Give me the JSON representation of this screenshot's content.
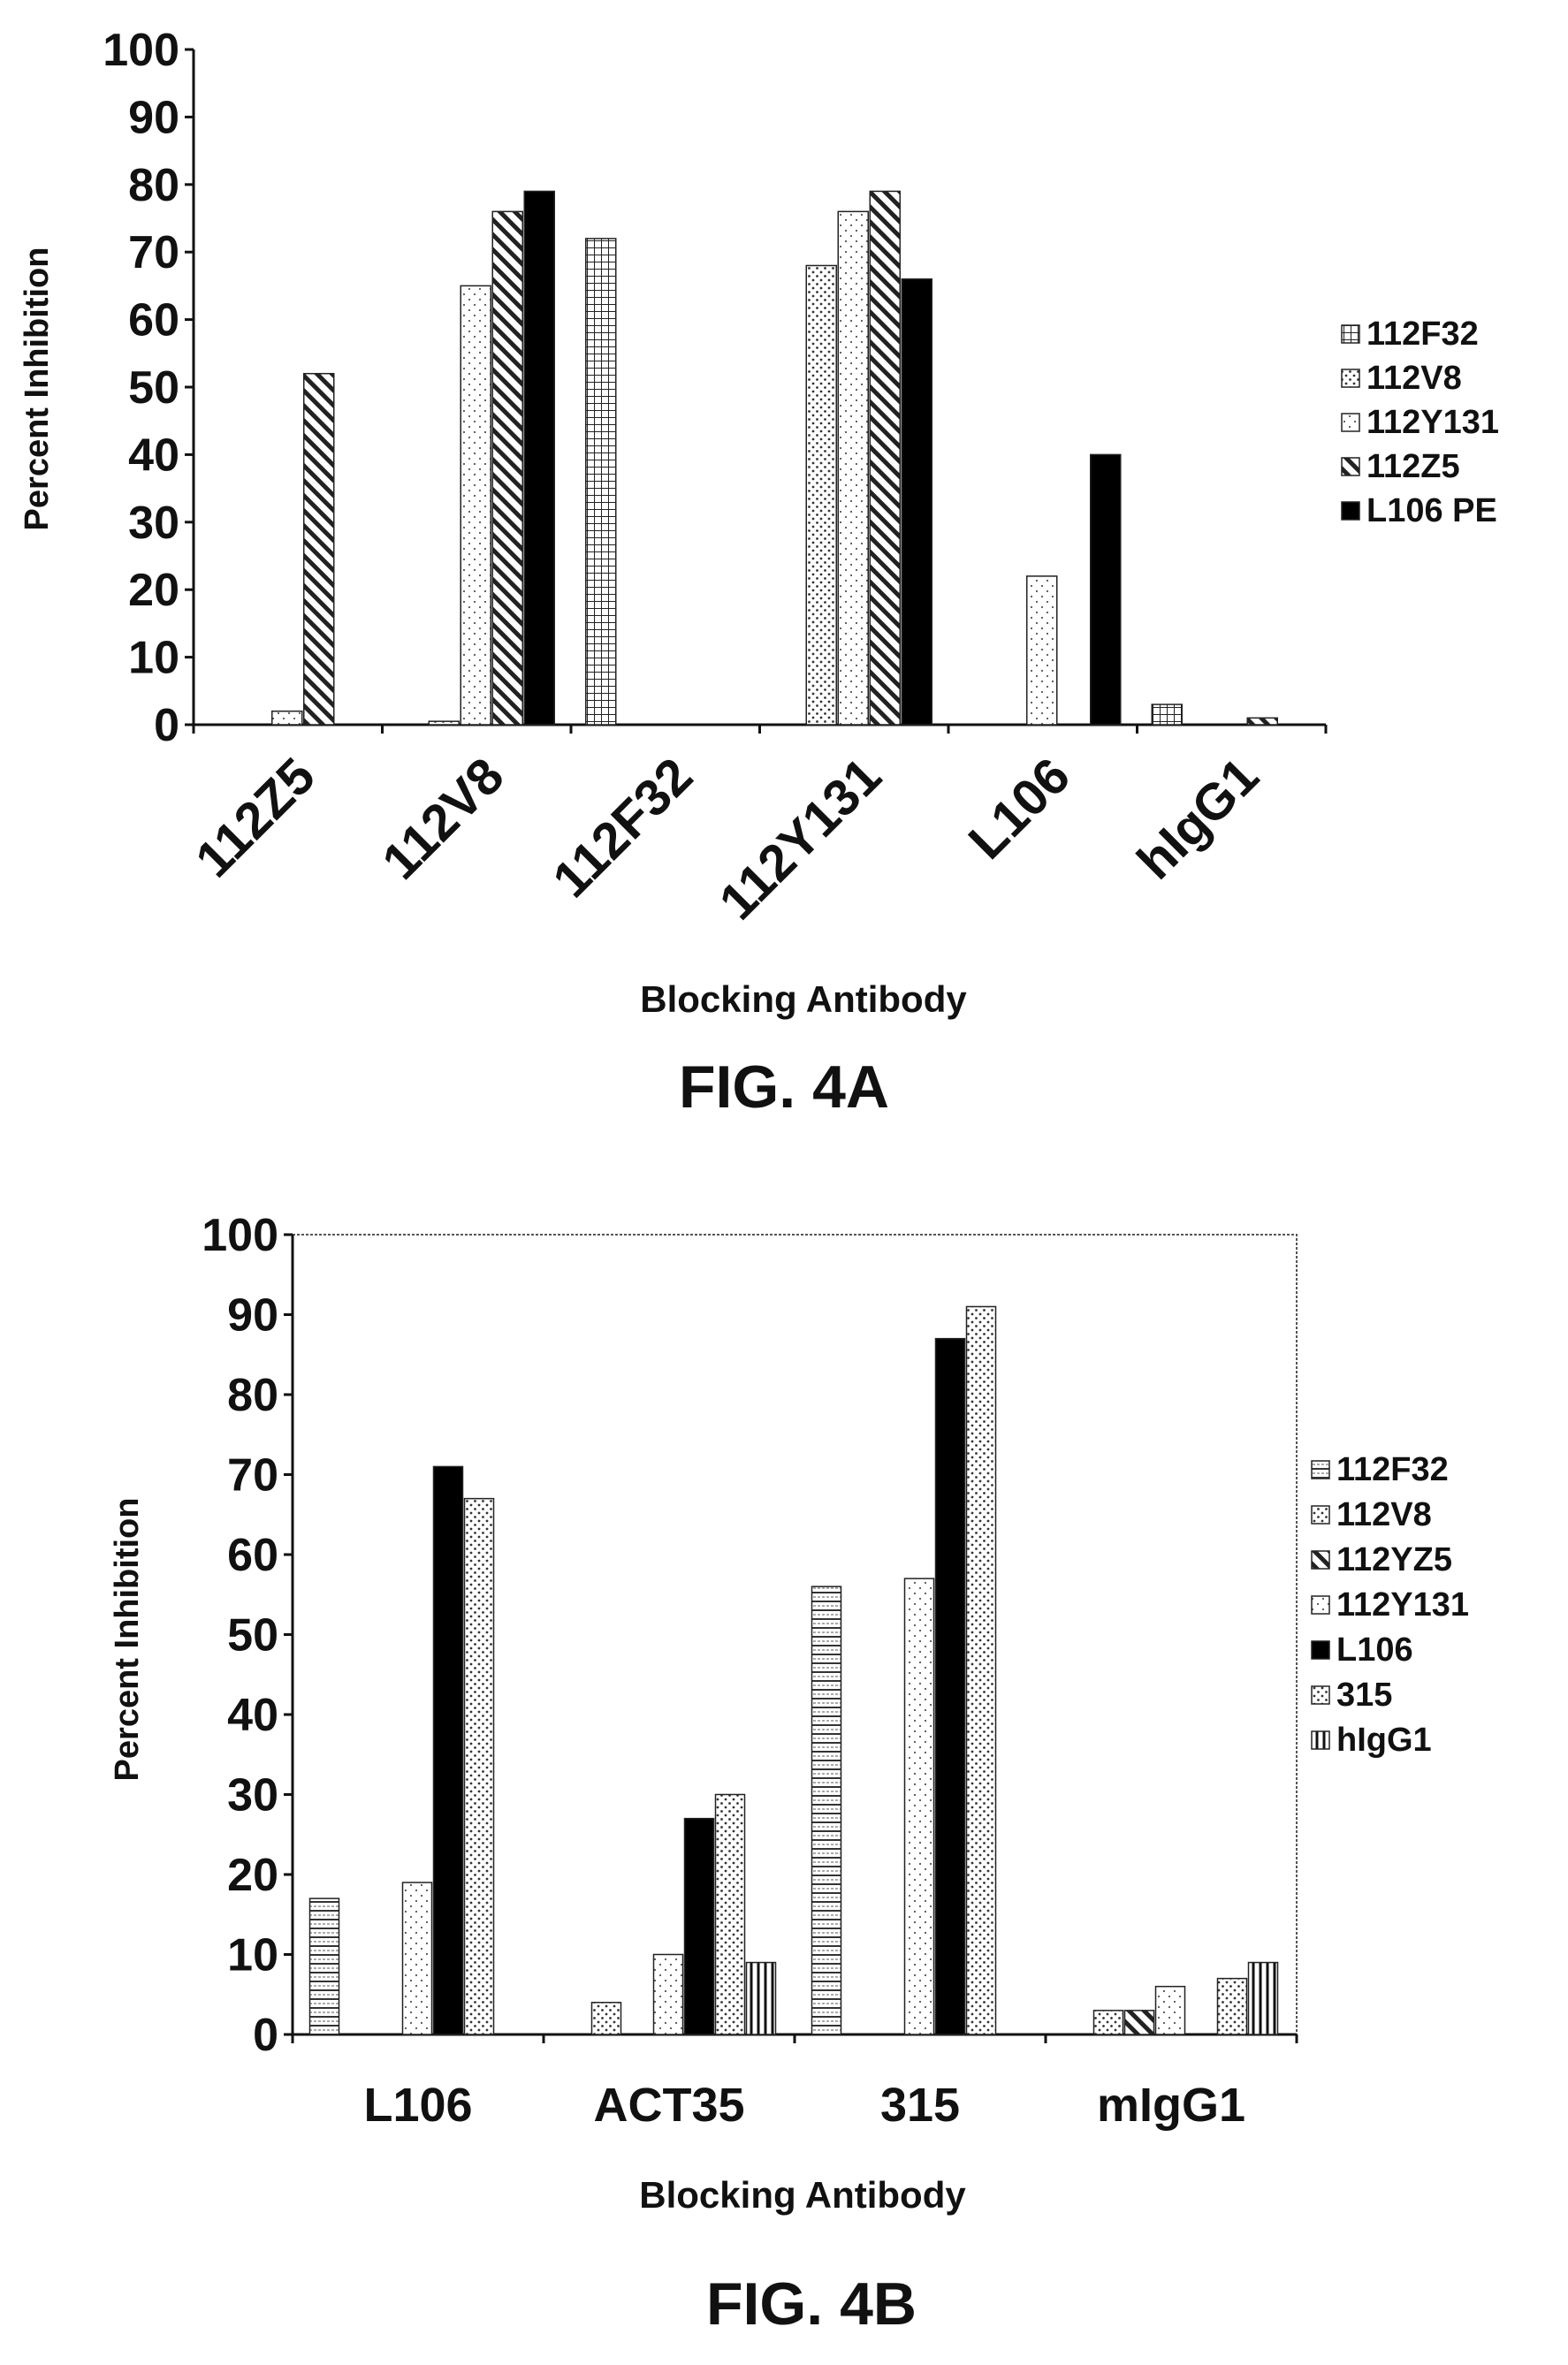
{
  "chart_data": [
    {
      "type": "bar",
      "figure_label": "FIG. 4A",
      "xlabel": "Blocking Antibody",
      "ylabel": "Percent Inhibition",
      "ylim": [
        0,
        100
      ],
      "yticks": [
        "0",
        "10",
        "20",
        "30",
        "40",
        "50",
        "60",
        "70",
        "80",
        "90",
        "100"
      ],
      "categories": [
        "112Z5",
        "112V8",
        "112F32",
        "112Y131",
        "L106",
        "hIgG1"
      ],
      "legend_position": "right",
      "series": [
        {
          "name": "112F32",
          "pattern": "grid",
          "values": [
            0,
            0,
            72,
            0,
            0,
            3
          ]
        },
        {
          "name": "112V8",
          "pattern": "dots",
          "values": [
            0,
            0.5,
            0,
            68,
            0,
            0
          ]
        },
        {
          "name": "112Y131",
          "pattern": "light-dots",
          "values": [
            2,
            65,
            0,
            76,
            22,
            0
          ]
        },
        {
          "name": "112Z5",
          "pattern": "diagonal",
          "values": [
            52,
            76,
            0,
            79,
            0,
            1
          ]
        },
        {
          "name": "L106 PE",
          "pattern": "solid-black",
          "values": [
            0,
            79,
            0,
            66,
            40,
            0
          ]
        }
      ]
    },
    {
      "type": "bar",
      "figure_label": "FIG. 4B",
      "xlabel": "Blocking Antibody",
      "ylabel": "Percent Inhibition",
      "ylim": [
        0,
        100
      ],
      "yticks": [
        "0",
        "10",
        "20",
        "30",
        "40",
        "50",
        "60",
        "70",
        "80",
        "90",
        "100"
      ],
      "categories": [
        "L106",
        "ACT35",
        "315",
        "mIgG1"
      ],
      "legend_position": "right",
      "series": [
        {
          "name": "112F32",
          "pattern": "horizontal-lines",
          "values": [
            17,
            0,
            56,
            0
          ]
        },
        {
          "name": "112V8",
          "pattern": "dots",
          "values": [
            0,
            4,
            0,
            3
          ]
        },
        {
          "name": "112YZ5",
          "pattern": "diagonal",
          "values": [
            0,
            0,
            0,
            3
          ]
        },
        {
          "name": "112Y131",
          "pattern": "light-dots",
          "values": [
            19,
            10,
            57,
            6
          ]
        },
        {
          "name": "L106",
          "pattern": "solid-black",
          "values": [
            71,
            27,
            87,
            0
          ]
        },
        {
          "name": "315",
          "pattern": "dots",
          "values": [
            67,
            30,
            91,
            7
          ]
        },
        {
          "name": "hIgG1",
          "pattern": "vertical-lines",
          "values": [
            0,
            9,
            0,
            9
          ]
        }
      ]
    }
  ]
}
